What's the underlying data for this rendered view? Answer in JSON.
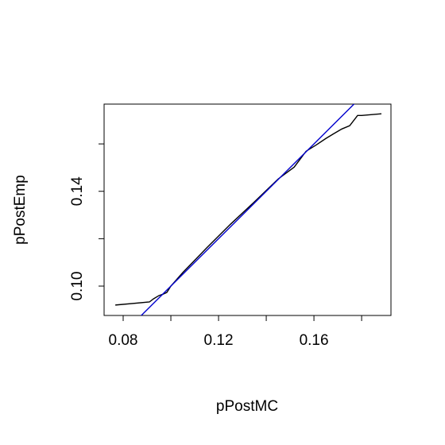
{
  "chart_data": {
    "type": "line",
    "xlabel": "pPostMC",
    "ylabel": "pPostEmp",
    "x": [
      0.0767,
      0.091,
      0.0927,
      0.095,
      0.0967,
      0.0983,
      0.1,
      0.105,
      0.115,
      0.125,
      0.135,
      0.145,
      0.1517,
      0.1567,
      0.161,
      0.165,
      0.1683,
      0.1717,
      0.175,
      0.1783,
      0.18,
      0.1883
    ],
    "series": [
      {
        "color": "#000000",
        "values": [
          0.092,
          0.0933,
          0.0946,
          0.096,
          0.0966,
          0.0973,
          0.1,
          0.1057,
          0.1161,
          0.1261,
          0.1355,
          0.1452,
          0.1502,
          0.1569,
          0.1596,
          0.1623,
          0.1643,
          0.1663,
          0.1677,
          0.172,
          0.172,
          0.1727
        ]
      }
    ],
    "abline": {
      "intercept": 0,
      "slope": 1,
      "color": "#0000cd"
    },
    "xlim": [
      0.072,
      0.1923
    ],
    "ylim": [
      0.0876,
      0.1768
    ],
    "xticks": [
      0.08,
      0.12,
      0.16
    ],
    "xminor_ticks": [
      0.1,
      0.14,
      0.18
    ],
    "yticks": [
      {
        "value": 0.1,
        "label": "0.10"
      },
      0.14
    ],
    "yminor_ticks": [
      0.12,
      0.16
    ]
  }
}
